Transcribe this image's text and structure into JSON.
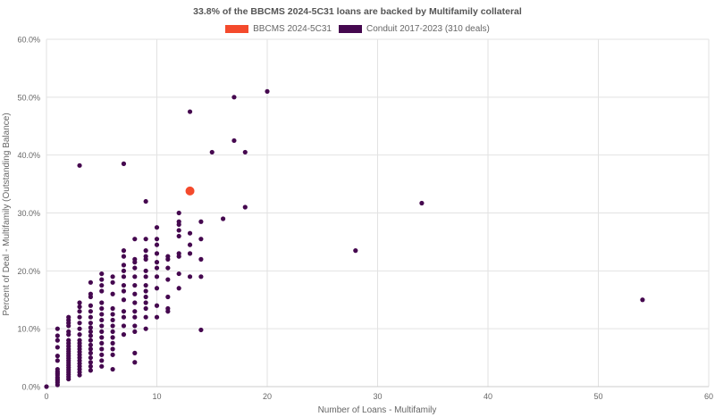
{
  "chart_data": {
    "type": "scatter",
    "title": "33.8% of the BBCMS 2024-5C31 loans are backed by Multifamily collateral",
    "xlabel": "Number of Loans - Multifamily",
    "ylabel": "Percent of Deal - Multifamily (Outstanding Balance)",
    "xlim": [
      0,
      60
    ],
    "ylim": [
      0,
      60
    ],
    "x_ticks": [
      "0",
      "10",
      "20",
      "30",
      "40",
      "50",
      "60"
    ],
    "y_ticks": [
      "0.0%",
      "10.0%",
      "20.0%",
      "30.0%",
      "40.0%",
      "50.0%",
      "60.0%"
    ],
    "grid": true,
    "legend_position": "top-center",
    "series": [
      {
        "name": "BBCMS 2024-5C31",
        "color": "#f44a2c",
        "points": [
          [
            13,
            33.8
          ]
        ]
      },
      {
        "name": "Conduit 2017-2023 (310 deals)",
        "color": "#45084f",
        "points": [
          [
            0,
            0
          ],
          [
            1,
            0.3
          ],
          [
            1,
            0.7
          ],
          [
            1,
            1.0
          ],
          [
            1,
            1.3
          ],
          [
            1,
            1.6
          ],
          [
            1,
            2.0
          ],
          [
            1,
            2.3
          ],
          [
            1,
            2.6
          ],
          [
            1,
            3.0
          ],
          [
            1,
            4.5
          ],
          [
            1,
            5.3
          ],
          [
            1,
            6.8
          ],
          [
            1,
            8.0
          ],
          [
            1,
            8.8
          ],
          [
            1,
            10.0
          ],
          [
            2,
            1.3
          ],
          [
            2,
            1.7
          ],
          [
            2,
            2.1
          ],
          [
            2,
            2.5
          ],
          [
            2,
            2.9
          ],
          [
            2,
            3.3
          ],
          [
            2,
            3.7
          ],
          [
            2,
            4.1
          ],
          [
            2,
            4.5
          ],
          [
            2,
            4.9
          ],
          [
            2,
            5.3
          ],
          [
            2,
            5.7
          ],
          [
            2,
            6.1
          ],
          [
            2,
            6.5
          ],
          [
            2,
            7.0
          ],
          [
            2,
            7.5
          ],
          [
            2,
            8.0
          ],
          [
            2,
            9.0
          ],
          [
            2,
            9.5
          ],
          [
            2,
            10.5
          ],
          [
            2,
            11.0
          ],
          [
            2,
            11.5
          ],
          [
            2,
            12.0
          ],
          [
            3,
            2.0
          ],
          [
            3,
            2.5
          ],
          [
            3,
            3.0
          ],
          [
            3,
            3.5
          ],
          [
            3,
            4.0
          ],
          [
            3,
            4.5
          ],
          [
            3,
            5.0
          ],
          [
            3,
            5.5
          ],
          [
            3,
            6.0
          ],
          [
            3,
            6.5
          ],
          [
            3,
            7.0
          ],
          [
            3,
            7.5
          ],
          [
            3,
            8.0
          ],
          [
            3,
            9.0
          ],
          [
            3,
            10.0
          ],
          [
            3,
            11.0
          ],
          [
            3,
            12.0
          ],
          [
            3,
            13.0
          ],
          [
            3,
            13.8
          ],
          [
            3,
            14.5
          ],
          [
            3,
            38.2
          ],
          [
            4,
            2.8
          ],
          [
            4,
            3.5
          ],
          [
            4,
            4.2
          ],
          [
            4,
            5.0
          ],
          [
            4,
            5.8
          ],
          [
            4,
            6.5
          ],
          [
            4,
            7.2
          ],
          [
            4,
            8.0
          ],
          [
            4,
            8.8
          ],
          [
            4,
            9.5
          ],
          [
            4,
            10.2
          ],
          [
            4,
            11.0
          ],
          [
            4,
            12.0
          ],
          [
            4,
            13.0
          ],
          [
            4,
            14.0
          ],
          [
            4,
            15.5
          ],
          [
            4,
            16.0
          ],
          [
            4,
            18.0
          ],
          [
            5,
            3.5
          ],
          [
            5,
            4.5
          ],
          [
            5,
            5.5
          ],
          [
            5,
            6.5
          ],
          [
            5,
            7.5
          ],
          [
            5,
            8.5
          ],
          [
            5,
            9.5
          ],
          [
            5,
            10.5
          ],
          [
            5,
            11.5
          ],
          [
            5,
            12.5
          ],
          [
            5,
            13.5
          ],
          [
            5,
            14.5
          ],
          [
            5,
            16.5
          ],
          [
            5,
            17.5
          ],
          [
            5,
            18.5
          ],
          [
            5,
            19.5
          ],
          [
            6,
            3.0
          ],
          [
            6,
            5.5
          ],
          [
            6,
            6.5
          ],
          [
            6,
            7.5
          ],
          [
            6,
            8.5
          ],
          [
            6,
            9.5
          ],
          [
            6,
            10.5
          ],
          [
            6,
            11.5
          ],
          [
            6,
            12.5
          ],
          [
            6,
            13.5
          ],
          [
            6,
            16.0
          ],
          [
            6,
            18.0
          ],
          [
            6,
            19.0
          ],
          [
            7,
            9.0
          ],
          [
            7,
            10.5
          ],
          [
            7,
            12.0
          ],
          [
            7,
            13.0
          ],
          [
            7,
            15.0
          ],
          [
            7,
            16.5
          ],
          [
            7,
            17.5
          ],
          [
            7,
            19.0
          ],
          [
            7,
            20.0
          ],
          [
            7,
            21.0
          ],
          [
            7,
            22.5
          ],
          [
            7,
            23.5
          ],
          [
            7,
            38.5
          ],
          [
            8,
            4.2
          ],
          [
            8,
            5.8
          ],
          [
            8,
            9.5
          ],
          [
            8,
            10.5
          ],
          [
            8,
            12.0
          ],
          [
            8,
            13.0
          ],
          [
            8,
            14.5
          ],
          [
            8,
            16.0
          ],
          [
            8,
            17.5
          ],
          [
            8,
            19.0
          ],
          [
            8,
            20.5
          ],
          [
            8,
            21.5
          ],
          [
            8,
            22.0
          ],
          [
            8,
            25.5
          ],
          [
            9,
            10.0
          ],
          [
            9,
            12.0
          ],
          [
            9,
            13.5
          ],
          [
            9,
            14.5
          ],
          [
            9,
            15.5
          ],
          [
            9,
            16.5
          ],
          [
            9,
            17.5
          ],
          [
            9,
            19.0
          ],
          [
            9,
            20.0
          ],
          [
            9,
            22.0
          ],
          [
            9,
            22.5
          ],
          [
            9,
            23.5
          ],
          [
            9,
            25.5
          ],
          [
            9,
            32.0
          ],
          [
            10,
            12.0
          ],
          [
            10,
            14.0
          ],
          [
            10,
            17.0
          ],
          [
            10,
            19.0
          ],
          [
            10,
            20.5
          ],
          [
            10,
            21.5
          ],
          [
            10,
            23.0
          ],
          [
            10,
            24.5
          ],
          [
            10,
            25.5
          ],
          [
            10,
            27.5
          ],
          [
            11,
            13.0
          ],
          [
            11,
            13.5
          ],
          [
            11,
            15.5
          ],
          [
            11,
            18.5
          ],
          [
            11,
            20.5
          ],
          [
            11,
            22.0
          ],
          [
            11,
            22.5
          ],
          [
            12,
            17.0
          ],
          [
            12,
            19.5
          ],
          [
            12,
            22.5
          ],
          [
            12,
            23.0
          ],
          [
            12,
            26.0
          ],
          [
            12,
            27.0
          ],
          [
            12,
            28.0
          ],
          [
            12,
            28.5
          ],
          [
            12,
            30.0
          ],
          [
            13,
            19.0
          ],
          [
            13,
            23.0
          ],
          [
            13,
            24.5
          ],
          [
            13,
            26.5
          ],
          [
            13,
            47.5
          ],
          [
            14,
            9.8
          ],
          [
            14,
            19.0
          ],
          [
            14,
            22.0
          ],
          [
            14,
            25.5
          ],
          [
            14,
            28.5
          ],
          [
            15,
            40.5
          ],
          [
            16,
            29.0
          ],
          [
            17,
            42.5
          ],
          [
            17,
            50.0
          ],
          [
            18,
            31.0
          ],
          [
            18,
            40.5
          ],
          [
            20,
            51.0
          ],
          [
            28,
            23.5
          ],
          [
            34,
            31.7
          ],
          [
            54,
            15.0
          ]
        ]
      }
    ]
  }
}
